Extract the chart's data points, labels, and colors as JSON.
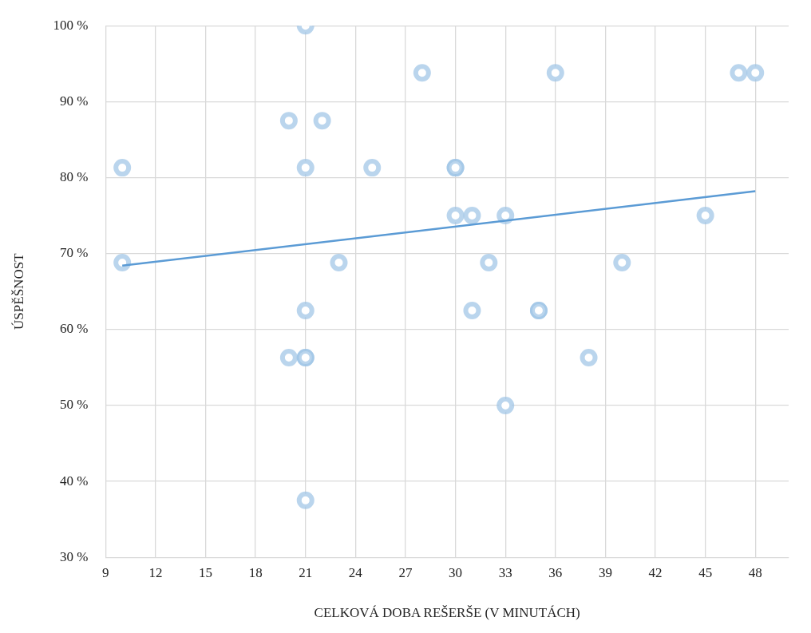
{
  "chart_data": {
    "type": "scatter",
    "xlabel": "CELKOVÁ DOBA REŠERŠE (V MINUTÁCH)",
    "ylabel": "ÚSPĚŠNOST",
    "xlim": [
      9,
      50
    ],
    "xticks": [
      9,
      12,
      15,
      18,
      21,
      24,
      27,
      30,
      33,
      36,
      39,
      42,
      45,
      48
    ],
    "ylim": [
      30,
      100
    ],
    "yticks": [
      {
        "value": 30,
        "label": "30 %"
      },
      {
        "value": 40,
        "label": "40 %"
      },
      {
        "value": 50,
        "label": "50 %"
      },
      {
        "value": 60,
        "label": "60 %"
      },
      {
        "value": 70,
        "label": "70 %"
      },
      {
        "value": 80,
        "label": "80 %"
      },
      {
        "value": 90,
        "label": "90 %"
      },
      {
        "value": 100,
        "label": "100 %"
      }
    ],
    "grid": true,
    "legend": false,
    "series": [
      {
        "marker": "circle",
        "color": "#9dc3e6",
        "x": [
          10,
          10,
          21,
          20,
          22,
          21,
          25,
          28,
          36,
          47,
          48,
          30,
          30,
          30,
          31,
          33,
          45,
          23,
          32,
          40,
          21,
          31,
          35,
          35,
          20,
          21,
          21,
          38,
          33,
          21
        ],
        "values": [
          81.3,
          68.8,
          100,
          87.5,
          87.5,
          81.3,
          81.3,
          93.8,
          93.8,
          93.8,
          93.8,
          81.3,
          81.3,
          75,
          75,
          75,
          75,
          68.8,
          68.8,
          68.8,
          62.5,
          62.5,
          62.5,
          62.5,
          56.3,
          56.3,
          56.3,
          56.3,
          50,
          37.5
        ]
      },
      {
        "type": "line",
        "marker": "none",
        "color": "#5b9bd5",
        "x": [
          10,
          48
        ],
        "values": [
          68.4,
          78.2
        ]
      }
    ]
  }
}
